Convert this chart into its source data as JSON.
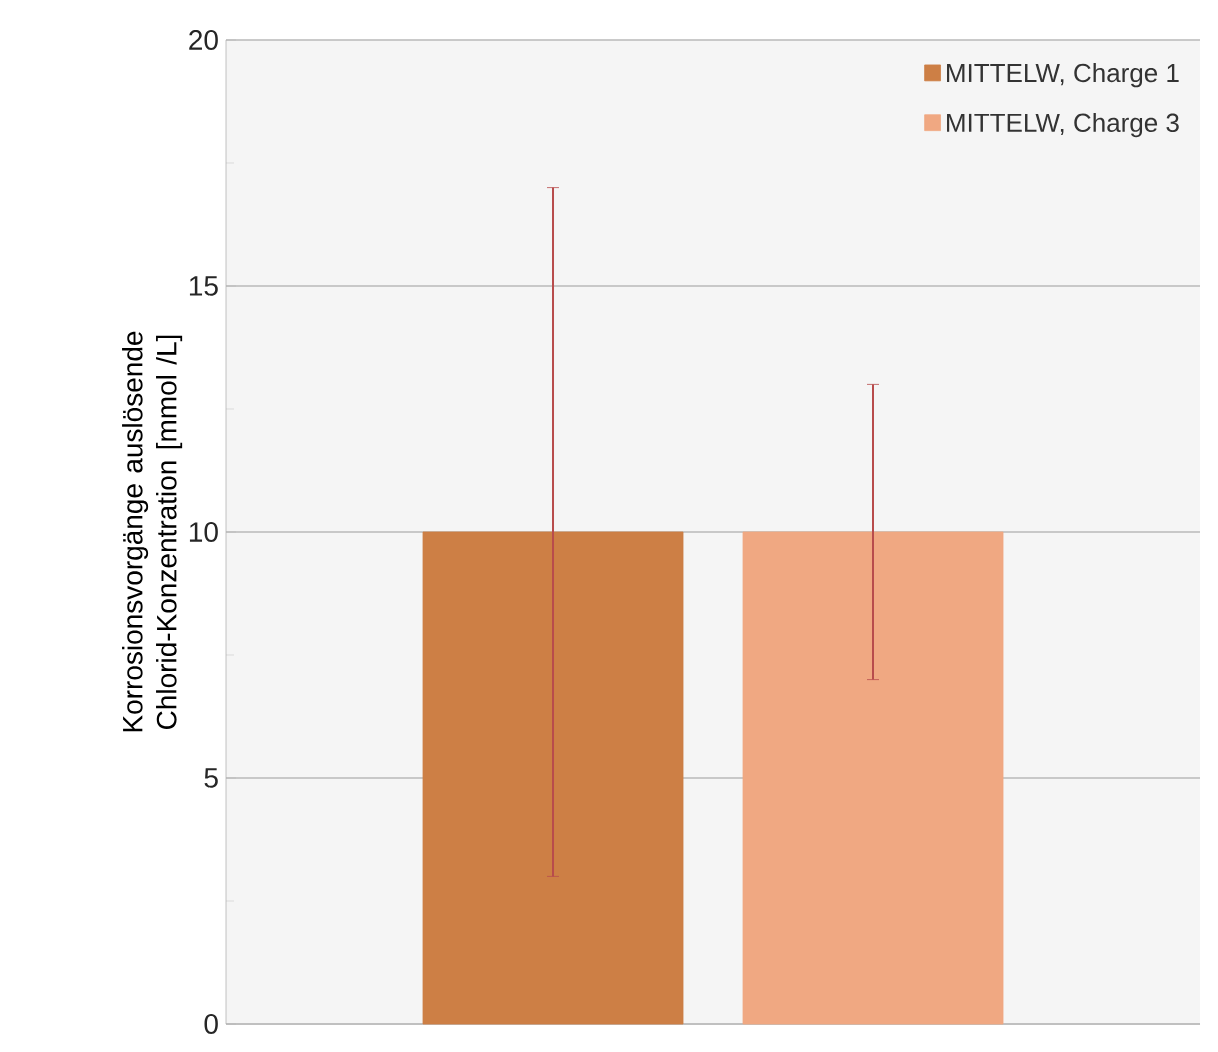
{
  "chart_data": {
    "type": "bar",
    "ylabel": "Korrosionsvorgänge auslösende Chlorid-Konzentration [mmol /L]",
    "categories": [
      null
    ],
    "series": [
      {
        "name": "MITTELW, Charge 1",
        "color": "#cd7f45",
        "values": [
          10
        ],
        "errors": [
          [
            3,
            17
          ]
        ]
      },
      {
        "name": "MITTELW, Charge 3",
        "color": "#f0a882",
        "values": [
          10
        ],
        "errors": [
          [
            7,
            13
          ]
        ]
      }
    ],
    "ylim": [
      0,
      20
    ],
    "yticks": [
      0,
      {
        "value": 2.5,
        "label": null
      },
      5,
      {
        "value": 7.5,
        "label": null
      },
      10,
      {
        "value": 12.5,
        "label": null
      },
      15,
      {
        "value": 17.5,
        "label": null
      },
      20
    ],
    "grid": "y",
    "legend": "top right"
  }
}
